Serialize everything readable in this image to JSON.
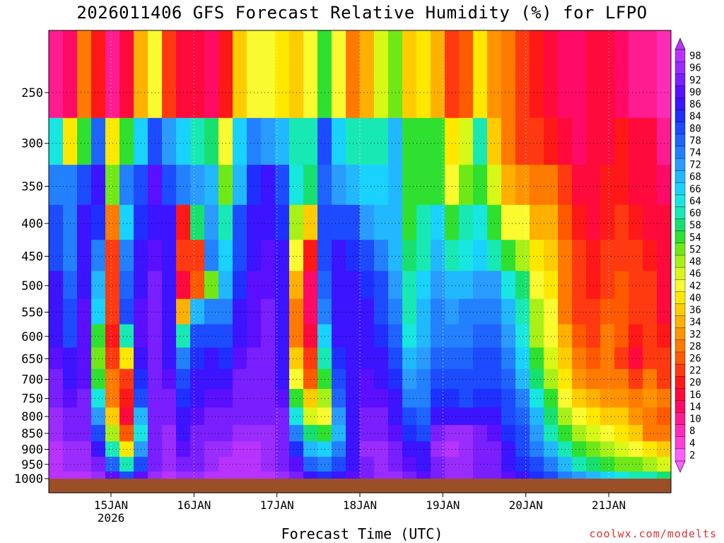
{
  "chart_data": {
    "type": "heatmap",
    "title": "2026011406 GFS Forecast Relative Humidity (%) for LFPO",
    "xlabel": "Forecast Time (UTC)",
    "ylabel": "",
    "credit": "coolwx.com/modelts",
    "x_ticks": [
      {
        "label": "15JAN",
        "sublabel": "2026",
        "day": 15
      },
      {
        "label": "16JAN",
        "day": 16
      },
      {
        "label": "17JAN",
        "day": 17
      },
      {
        "label": "18JAN",
        "day": 18
      },
      {
        "label": "19JAN",
        "day": 19
      },
      {
        "label": "20JAN",
        "day": 20
      },
      {
        "label": "21JAN",
        "day": 21
      }
    ],
    "xlim_days": [
      14.25,
      21.75
    ],
    "y_levels_hpa": [
      250,
      300,
      350,
      400,
      450,
      500,
      550,
      600,
      650,
      700,
      750,
      800,
      850,
      900,
      950,
      1000
    ],
    "ylim_hpa": [
      200,
      1000
    ],
    "colorbar_ticks": [
      98,
      96,
      92,
      90,
      86,
      84,
      80,
      78,
      74,
      72,
      68,
      66,
      64,
      60,
      58,
      54,
      52,
      48,
      46,
      42,
      40,
      36,
      34,
      32,
      28,
      26,
      22,
      20,
      16,
      14,
      10,
      8,
      4,
      2
    ],
    "colorbar_colors": [
      "#b833ff",
      "#9b2cff",
      "#7a1fff",
      "#5a0fff",
      "#3c14ff",
      "#1f2fff",
      "#1d4bff",
      "#1f64ff",
      "#2380ff",
      "#2a9bff",
      "#22b8ff",
      "#19d2ff",
      "#18e6e0",
      "#18e8b4",
      "#18e070",
      "#30e030",
      "#70e818",
      "#a8f018",
      "#d8f818",
      "#fafa30",
      "#ffe800",
      "#ffcc00",
      "#ffb000",
      "#ff9400",
      "#ff7a00",
      "#ff5a00",
      "#ff3a10",
      "#ff1818",
      "#ff0a3c",
      "#ff0a66",
      "#ff1c90",
      "#ff2cb8",
      "#ff40d8",
      "#ff60ff"
    ],
    "rh_grid_note": "Relative humidity (%) at levels 250..1000 hPa (rows, top to bottom) by forecast period (cols, ~6 columns per day from 14JAN12 to 21JAN18)",
    "rh_grid": [
      [
        10,
        14,
        30,
        20,
        12,
        18,
        34,
        42,
        22,
        18,
        16,
        14,
        20,
        36,
        44,
        42,
        40,
        36,
        42,
        56,
        42,
        30,
        34,
        46,
        52,
        36,
        40,
        34,
        22,
        26,
        40,
        32,
        30,
        24,
        20,
        16,
        14,
        14,
        18,
        18,
        14,
        12,
        12,
        8
      ],
      [
        64,
        40,
        54,
        78,
        40,
        54,
        66,
        80,
        72,
        66,
        60,
        58,
        44,
        66,
        74,
        72,
        70,
        60,
        62,
        80,
        66,
        62,
        60,
        62,
        68,
        54,
        54,
        54,
        40,
        46,
        60,
        36,
        28,
        24,
        22,
        20,
        16,
        14,
        16,
        18,
        20,
        16,
        16,
        12
      ],
      [
        76,
        74,
        80,
        86,
        52,
        74,
        80,
        90,
        82,
        76,
        72,
        70,
        52,
        70,
        84,
        86,
        82,
        64,
        58,
        78,
        72,
        70,
        66,
        66,
        70,
        56,
        54,
        56,
        44,
        52,
        56,
        46,
        34,
        32,
        28,
        30,
        22,
        18,
        16,
        20,
        20,
        18,
        18,
        14
      ],
      [
        80,
        74,
        86,
        84,
        28,
        66,
        84,
        88,
        86,
        20,
        58,
        72,
        60,
        80,
        88,
        88,
        84,
        50,
        36,
        82,
        82,
        80,
        72,
        70,
        68,
        56,
        62,
        66,
        54,
        62,
        64,
        56,
        44,
        42,
        34,
        34,
        26,
        20,
        18,
        20,
        22,
        20,
        18,
        16
      ],
      [
        82,
        76,
        88,
        74,
        24,
        76,
        86,
        90,
        86,
        22,
        24,
        74,
        66,
        82,
        88,
        90,
        86,
        44,
        20,
        80,
        86,
        84,
        80,
        74,
        70,
        58,
        62,
        68,
        62,
        64,
        66,
        62,
        54,
        50,
        40,
        38,
        28,
        22,
        20,
        22,
        24,
        22,
        20,
        16
      ],
      [
        86,
        78,
        88,
        70,
        22,
        78,
        88,
        92,
        86,
        18,
        26,
        52,
        70,
        84,
        90,
        90,
        86,
        34,
        14,
        78,
        88,
        86,
        84,
        80,
        72,
        60,
        66,
        72,
        70,
        70,
        72,
        72,
        64,
        58,
        44,
        40,
        30,
        22,
        20,
        24,
        26,
        22,
        22,
        16
      ],
      [
        88,
        80,
        90,
        66,
        24,
        82,
        90,
        92,
        86,
        34,
        70,
        76,
        76,
        88,
        90,
        92,
        88,
        28,
        14,
        74,
        88,
        88,
        86,
        82,
        76,
        62,
        68,
        74,
        72,
        74,
        76,
        76,
        70,
        62,
        48,
        42,
        30,
        24,
        22,
        26,
        26,
        24,
        24,
        18
      ],
      [
        88,
        82,
        90,
        56,
        20,
        60,
        90,
        92,
        86,
        62,
        80,
        82,
        80,
        88,
        90,
        92,
        88,
        30,
        18,
        66,
        86,
        88,
        86,
        84,
        78,
        64,
        70,
        76,
        76,
        76,
        78,
        78,
        72,
        64,
        50,
        44,
        34,
        26,
        24,
        28,
        26,
        20,
        22,
        20
      ],
      [
        90,
        86,
        90,
        52,
        24,
        40,
        88,
        94,
        88,
        74,
        84,
        86,
        84,
        90,
        92,
        92,
        88,
        36,
        22,
        60,
        84,
        88,
        88,
        86,
        80,
        68,
        72,
        78,
        78,
        78,
        80,
        80,
        76,
        66,
        54,
        46,
        36,
        28,
        26,
        28,
        24,
        16,
        24,
        22
      ],
      [
        92,
        88,
        90,
        56,
        28,
        22,
        84,
        94,
        90,
        80,
        86,
        88,
        88,
        92,
        92,
        94,
        88,
        42,
        26,
        56,
        82,
        88,
        90,
        88,
        84,
        72,
        74,
        80,
        82,
        80,
        82,
        82,
        78,
        70,
        58,
        50,
        40,
        32,
        28,
        30,
        28,
        22,
        28,
        24
      ],
      [
        94,
        90,
        92,
        64,
        30,
        20,
        80,
        94,
        92,
        84,
        88,
        90,
        90,
        92,
        94,
        94,
        90,
        54,
        36,
        50,
        78,
        86,
        90,
        90,
        86,
        76,
        76,
        84,
        84,
        82,
        84,
        84,
        80,
        74,
        64,
        54,
        44,
        38,
        34,
        32,
        32,
        30,
        32,
        28
      ],
      [
        96,
        92,
        92,
        72,
        38,
        16,
        70,
        94,
        94,
        86,
        90,
        92,
        92,
        94,
        94,
        94,
        92,
        64,
        46,
        44,
        72,
        86,
        92,
        92,
        88,
        80,
        78,
        88,
        88,
        86,
        86,
        86,
        82,
        78,
        68,
        58,
        50,
        44,
        40,
        36,
        36,
        32,
        30,
        26
      ],
      [
        96,
        94,
        94,
        82,
        48,
        26,
        64,
        92,
        96,
        88,
        92,
        94,
        94,
        96,
        96,
        96,
        92,
        74,
        58,
        56,
        70,
        88,
        94,
        94,
        90,
        84,
        82,
        94,
        96,
        96,
        92,
        90,
        84,
        80,
        72,
        62,
        56,
        50,
        46,
        42,
        40,
        36,
        30,
        28
      ],
      [
        98,
        96,
        96,
        88,
        62,
        40,
        72,
        92,
        96,
        90,
        94,
        96,
        96,
        98,
        98,
        96,
        94,
        84,
        68,
        66,
        74,
        88,
        96,
        96,
        92,
        88,
        86,
        96,
        98,
        96,
        94,
        92,
        86,
        82,
        76,
        68,
        62,
        56,
        52,
        48,
        46,
        44,
        40,
        36
      ],
      [
        98,
        96,
        96,
        92,
        78,
        60,
        82,
        94,
        96,
        92,
        94,
        96,
        98,
        98,
        98,
        96,
        94,
        90,
        78,
        74,
        80,
        86,
        94,
        96,
        94,
        90,
        88,
        94,
        96,
        96,
        94,
        92,
        88,
        84,
        80,
        74,
        68,
        62,
        58,
        56,
        52,
        52,
        50,
        46
      ],
      [
        98,
        98,
        98,
        96,
        90,
        80,
        90,
        96,
        98,
        96,
        96,
        98,
        98,
        98,
        98,
        98,
        96,
        94,
        88,
        84,
        86,
        90,
        94,
        96,
        96,
        92,
        90,
        94,
        96,
        96,
        94,
        92,
        90,
        88,
        84,
        80,
        76,
        72,
        70,
        66,
        64,
        62,
        60,
        58
      ]
    ]
  }
}
